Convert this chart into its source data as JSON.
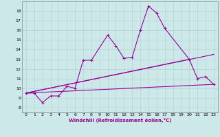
{
  "xlabel": "Windchill (Refroidissement éolien,°C)",
  "bg_color": "#cce8e8",
  "grid_color": "#b8d8d8",
  "line_color": "#990099",
  "xlim": [
    -0.5,
    23.5
  ],
  "ylim": [
    7.5,
    19.0
  ],
  "xticks": [
    0,
    1,
    2,
    3,
    4,
    5,
    6,
    7,
    8,
    9,
    10,
    11,
    12,
    13,
    14,
    15,
    16,
    17,
    18,
    19,
    20,
    21,
    22,
    23
  ],
  "yticks": [
    8,
    9,
    10,
    11,
    12,
    13,
    14,
    15,
    16,
    17,
    18
  ],
  "series1_x": [
    0,
    1,
    2,
    3,
    4,
    5,
    6,
    7,
    8,
    10,
    11,
    12,
    13,
    14,
    15,
    16,
    17,
    20,
    21,
    22,
    23
  ],
  "series1_y": [
    9.5,
    9.5,
    8.5,
    9.2,
    9.2,
    10.2,
    10.0,
    12.9,
    12.9,
    15.5,
    14.4,
    13.1,
    13.2,
    16.0,
    18.5,
    17.8,
    16.2,
    13.0,
    11.0,
    11.2,
    10.4
  ],
  "line1_x": [
    0,
    23
  ],
  "line1_y": [
    9.5,
    10.4
  ],
  "line2_x": [
    0,
    20
  ],
  "line2_y": [
    9.5,
    13.0
  ],
  "line3_x": [
    0,
    23
  ],
  "line3_y": [
    9.5,
    13.5
  ]
}
